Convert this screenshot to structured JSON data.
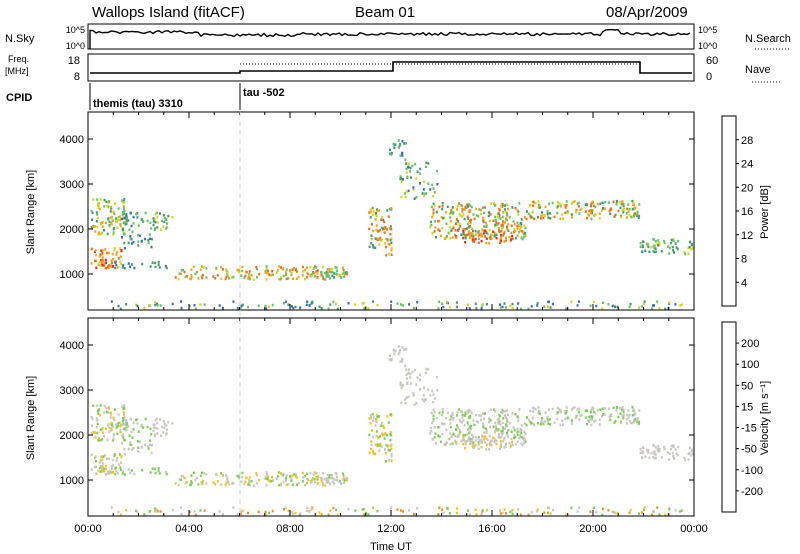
{
  "header": {
    "title": "Wallops Island (fitACF)",
    "beam": "Beam 01",
    "date": "08/Apr/2009"
  },
  "noise_panel": {
    "left_label": "N.Sky",
    "right_label": "N.Search",
    "ticks": [
      "10^5",
      "10^0"
    ]
  },
  "freq_panel": {
    "left_label_1": "Freq.",
    "left_label_2": "[MHz]",
    "left_ticks": [
      "18",
      "8"
    ],
    "right_label": "Nave",
    "right_ticks": [
      "60",
      "0"
    ]
  },
  "cpid": {
    "label": "CPID",
    "modes": [
      {
        "text": "themis (tau) 3310",
        "start_hour": 0
      },
      {
        "text": "tau -502",
        "start_hour": 6
      }
    ]
  },
  "chart_data": [
    {
      "type": "heatmap",
      "name": "power",
      "xlabel": "",
      "ylabel": "Slant Range [km]",
      "xlim": [
        0,
        24
      ],
      "ylim": [
        200,
        4600
      ],
      "yticks": [
        1000,
        2000,
        3000,
        4000
      ],
      "colorbar": {
        "label": "Power [dB]",
        "ticks": [
          "4",
          "8",
          "12",
          "16",
          "20",
          "24",
          "28"
        ],
        "colors": [
          "#1b1bd8",
          "#3a6ab8",
          "#3f9a6e",
          "#66c262",
          "#d6d51d",
          "#f7a11c",
          "#ef6d1b",
          "#e8231a"
        ]
      }
    },
    {
      "type": "heatmap",
      "name": "velocity",
      "xlabel": "Time UT",
      "ylabel": "Slant Range [km]",
      "xlim": [
        0,
        24
      ],
      "ylim": [
        200,
        4600
      ],
      "yticks": [
        1000,
        2000,
        3000,
        4000
      ],
      "xticks": [
        "00:00",
        "04:00",
        "08:00",
        "12:00",
        "16:00",
        "20:00",
        "00:00"
      ],
      "colorbar": {
        "label": "Velocity [m s⁻¹]",
        "ticks": [
          "200",
          "100",
          "50",
          "15",
          "-15",
          "-50",
          "-100",
          "-200"
        ],
        "colors": [
          "#2222cc",
          "#2e6ab5",
          "#3b8f6b",
          "#79cd52",
          "#c8c6be",
          "#f3c21a",
          "#f39019",
          "#ee5b16",
          "#e62219"
        ]
      }
    }
  ]
}
